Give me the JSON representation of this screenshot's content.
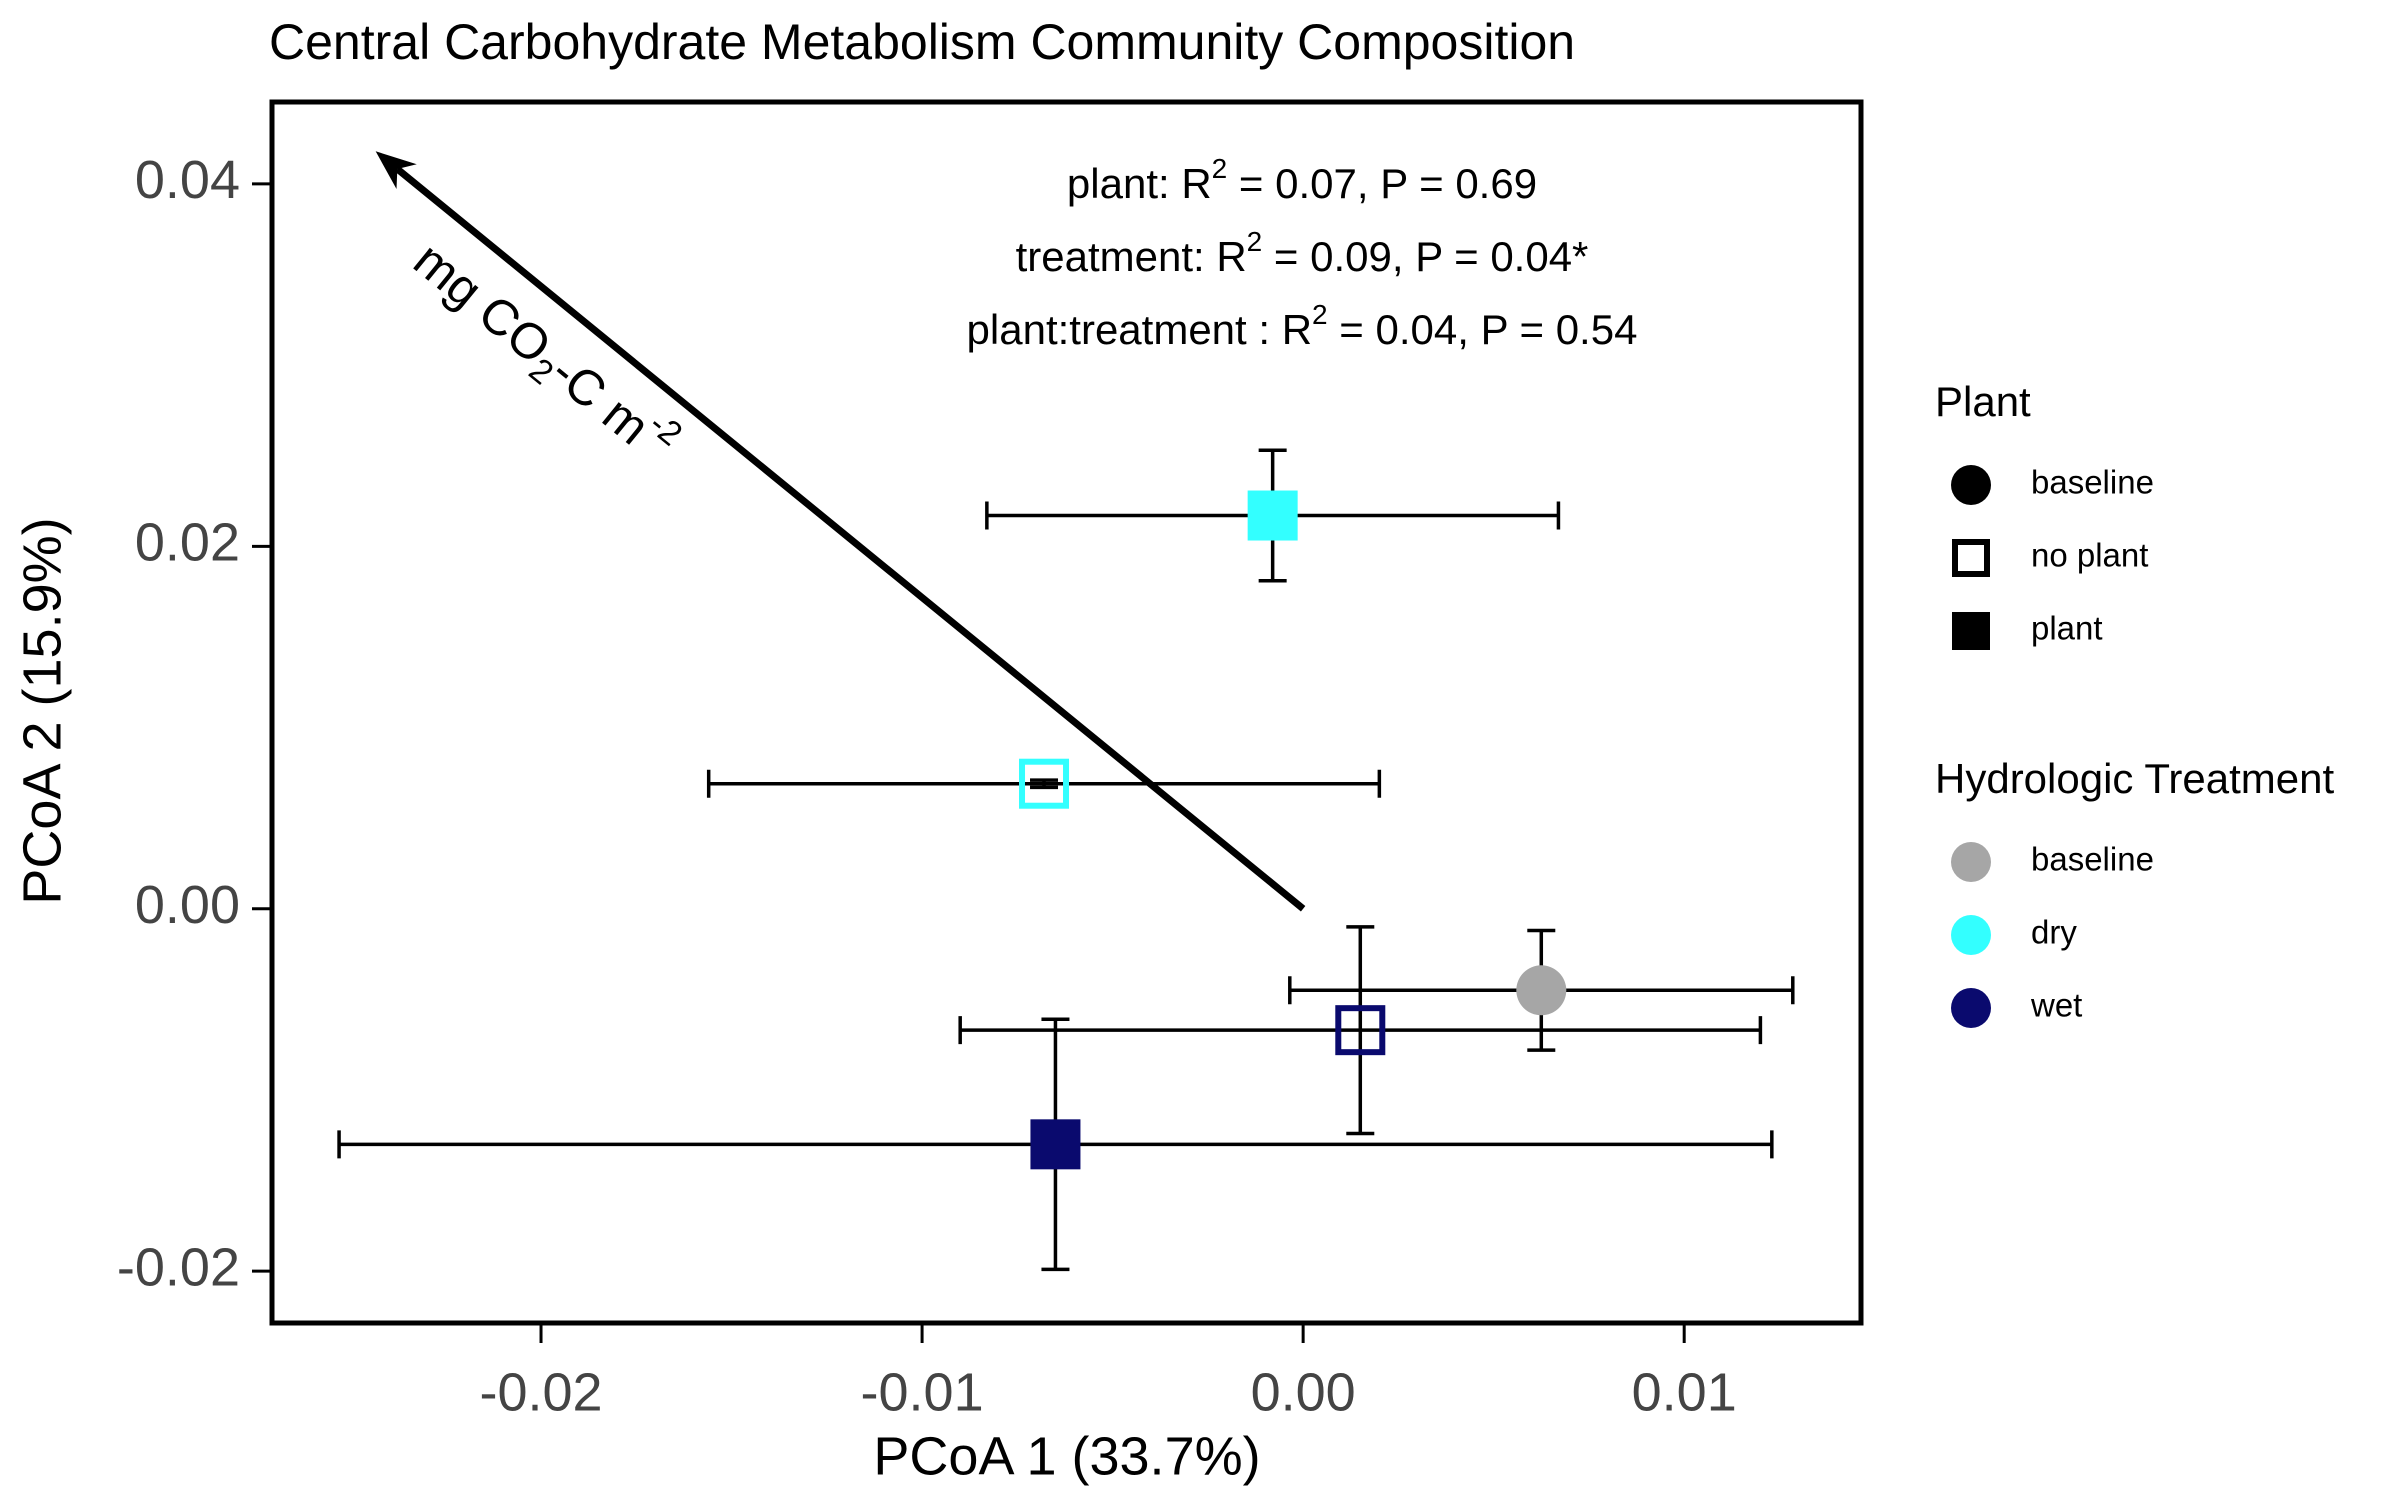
{
  "chart_data": {
    "type": "scatter",
    "title": "Central Carbohydrate Metabolism Community Composition",
    "x_label": "PCoA 1 (33.7%)",
    "y_label": "PCoA 2 (15.9%)",
    "xlim": [
      -0.02706,
      0.01464
    ],
    "ylim": [
      -0.02286,
      0.04452
    ],
    "xticks": [
      {
        "value": -0.02,
        "label": "-0.02"
      },
      {
        "value": -0.01,
        "label": "-0.01"
      },
      {
        "value": 0,
        "label": "0.00"
      },
      {
        "value": 0.01,
        "label": "0.01"
      }
    ],
    "yticks": [
      {
        "value": -0.02,
        "label": "-0.02"
      },
      {
        "value": 0,
        "label": "0.00"
      },
      {
        "value": 0.02,
        "label": "0.02"
      },
      {
        "value": 0.04,
        "label": "0.04"
      }
    ],
    "points": [
      {
        "x": -0.0008,
        "y": 0.0217,
        "xerr": 0.0075,
        "yerr": 0.0036,
        "marker": "square",
        "color": "#33ffff"
      },
      {
        "x": -0.0068,
        "y": 0.0069,
        "xerr": 0.0088,
        "yerr": 0.0002,
        "marker": "square-open",
        "color": "#33ffff"
      },
      {
        "x": 0.00625,
        "y": -0.0045,
        "xerr": 0.0066,
        "yerr": 0.0033,
        "marker": "circle",
        "color": "#a6a6a6"
      },
      {
        "x": 0.0015,
        "y": -0.0067,
        "xerr": 0.0105,
        "yerr": 0.0057,
        "marker": "square-open",
        "color": "#0a0a6e"
      },
      {
        "x": -0.0065,
        "y": -0.013,
        "xerr": 0.0188,
        "yerr": 0.0069,
        "marker": "square",
        "color": "#0a0a6e"
      }
    ],
    "arrow": {
      "x": [
        0,
        -0.02434
      ],
      "y": [
        0,
        0.0418
      ],
      "label": [
        "mg CO",
        "2",
        "-C m",
        "-2"
      ]
    },
    "annotations": [
      [
        "plant: R",
        "2",
        " = 0.07, P = 0.69"
      ],
      [
        "treatment: R",
        "2",
        " = 0.09, P = 0.04*"
      ],
      [
        "plant:treatment : R",
        "2",
        " = 0.04, P = 0.54"
      ]
    ],
    "legends": [
      {
        "title": "Plant",
        "items": [
          {
            "name": "baseline",
            "marker": "circle",
            "color": "#000000"
          },
          {
            "name": "no plant",
            "marker": "square-open",
            "color": "#000000"
          },
          {
            "name": "plant",
            "marker": "square",
            "color": "#000000"
          }
        ]
      },
      {
        "title": "Hydrologic Treatment",
        "items": [
          {
            "name": "baseline",
            "marker": "circle",
            "color": "#a6a6a6"
          },
          {
            "name": "dry",
            "marker": "circle",
            "color": "#33ffff"
          },
          {
            "name": "wet",
            "marker": "circle",
            "color": "#0a0a6e"
          }
        ]
      }
    ]
  }
}
